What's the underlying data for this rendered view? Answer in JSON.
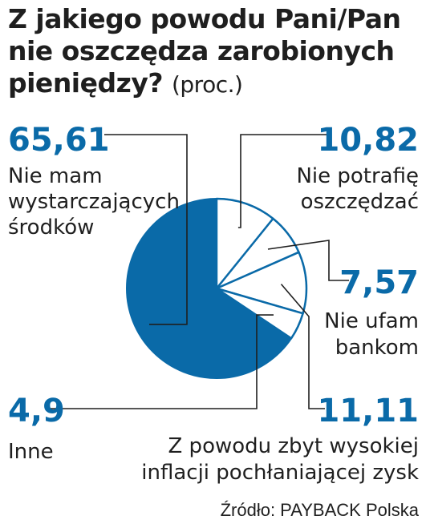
{
  "title_line1": "Z jakiego powodu Pani/Pan",
  "title_line2": "nie oszczędza zarobionych",
  "title_line3": "pieniędzy?",
  "unit": "(proc.)",
  "source": "Źródło: PAYBACK Polska",
  "accent_color": "#0a6aa8",
  "chart_data": {
    "type": "pie",
    "slices": [
      {
        "value": 65.61,
        "value_label": "65,61",
        "label_lines": [
          "Nie mam",
          "wystarczających",
          "środków"
        ],
        "color": "#0a6aa8"
      },
      {
        "value": 10.82,
        "value_label": "10,82",
        "label_lines": [
          "Nie potrafię",
          "oszczędzać"
        ],
        "color": "#ffffff"
      },
      {
        "value": 7.57,
        "value_label": "7,57",
        "label_lines": [
          "Nie ufam",
          "bankom"
        ],
        "color": "#ffffff"
      },
      {
        "value": 11.11,
        "value_label": "11,11",
        "label_lines": [
          "Z powodu zbyt wysokiej",
          "inflacji pochłaniającej zysk"
        ],
        "color": "#ffffff"
      },
      {
        "value": 4.9,
        "value_label": "4,9",
        "label_lines": [
          "Inne"
        ],
        "color": "#ffffff"
      }
    ]
  }
}
